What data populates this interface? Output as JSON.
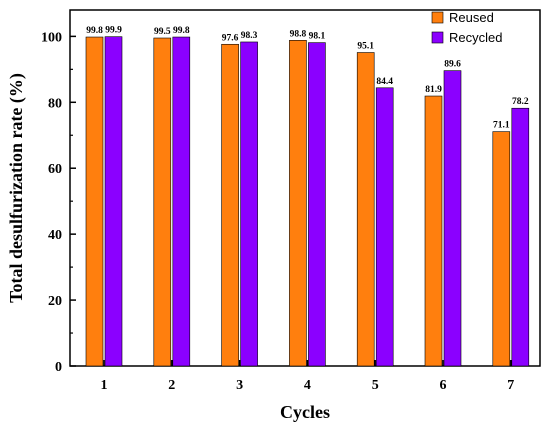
{
  "chart_data": {
    "type": "bar",
    "title": "",
    "xlabel": "Cycles",
    "ylabel": "Total desulfurization rate (%)",
    "ylim": [
      0,
      108
    ],
    "yticks": [
      0,
      20,
      40,
      60,
      80,
      100
    ],
    "categories": [
      "1",
      "2",
      "3",
      "4",
      "5",
      "6",
      "7"
    ],
    "series": [
      {
        "name": "Reused",
        "color": "#FF7F0E",
        "values": [
          99.8,
          99.5,
          97.6,
          98.8,
          95.1,
          81.9,
          71.1
        ],
        "labels": [
          "99.8",
          "99.5",
          "97.6",
          "98.8",
          "95.1",
          "81.9",
          "71.1"
        ]
      },
      {
        "name": "Recycled",
        "color": "#8B00FF",
        "values": [
          99.9,
          99.8,
          98.3,
          98.1,
          84.4,
          89.6,
          78.2
        ],
        "labels": [
          "99.9",
          "99.8",
          "98.3",
          "98.1",
          "84.4",
          "89.6",
          "78.2"
        ]
      }
    ],
    "legend": "top-right",
    "grid": false
  }
}
